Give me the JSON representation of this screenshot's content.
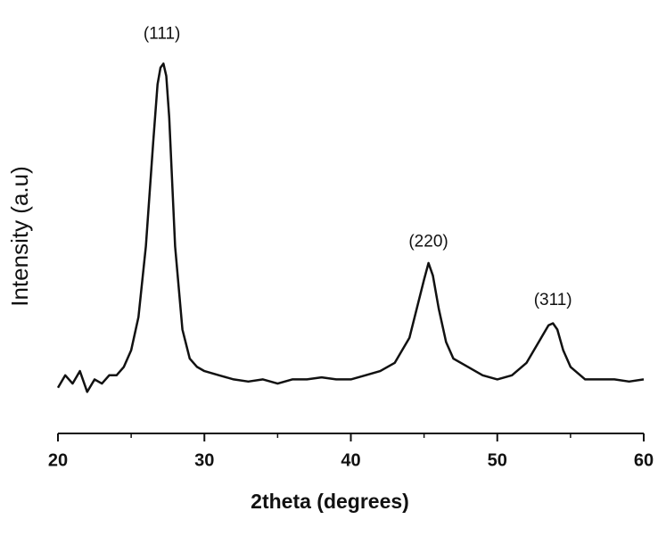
{
  "chart_data": {
    "type": "line",
    "xlabel": "2theta (degrees)",
    "ylabel": "Intensity (a.u)",
    "x": [
      20,
      20.5,
      21,
      21.5,
      22,
      22.5,
      23,
      23.5,
      24,
      24.5,
      25,
      25.5,
      26,
      26.5,
      26.8,
      27,
      27.2,
      27.4,
      27.6,
      28,
      28.5,
      29,
      29.5,
      30,
      31,
      32,
      33,
      34,
      35,
      36,
      37,
      38,
      39,
      40,
      41,
      42,
      43,
      43.5,
      44,
      44.5,
      45,
      45.3,
      45.6,
      46,
      46.5,
      47,
      48,
      49,
      50,
      51,
      52,
      52.5,
      53,
      53.5,
      53.8,
      54.1,
      54.5,
      55,
      56,
      57,
      58,
      59,
      60
    ],
    "values": [
      11,
      14,
      12,
      15,
      10,
      13,
      12,
      14,
      14,
      16,
      20,
      28,
      45,
      70,
      84,
      88,
      89,
      86,
      76,
      45,
      25,
      18,
      16,
      15,
      14,
      13,
      12.5,
      13,
      12,
      13,
      13,
      13.5,
      13,
      13,
      14,
      15,
      17,
      20,
      23,
      30,
      37,
      41,
      38,
      30,
      22,
      18,
      16,
      14,
      13,
      14,
      17,
      20,
      23,
      26,
      26.5,
      25,
      20,
      16,
      13,
      13,
      13,
      12.5,
      13
    ],
    "color": "#111111",
    "xlim": [
      20,
      60
    ],
    "xticks": [
      20,
      30,
      40,
      50,
      60
    ],
    "minor_xticks": [
      25,
      35,
      45,
      55
    ],
    "ylim": [
      0,
      100
    ],
    "annotations": [
      {
        "text": "(111)",
        "x": 27.1,
        "y": 96
      },
      {
        "text": "(220)",
        "x": 45.3,
        "y": 46
      },
      {
        "text": "(311)",
        "x": 53.8,
        "y": 32
      }
    ]
  }
}
